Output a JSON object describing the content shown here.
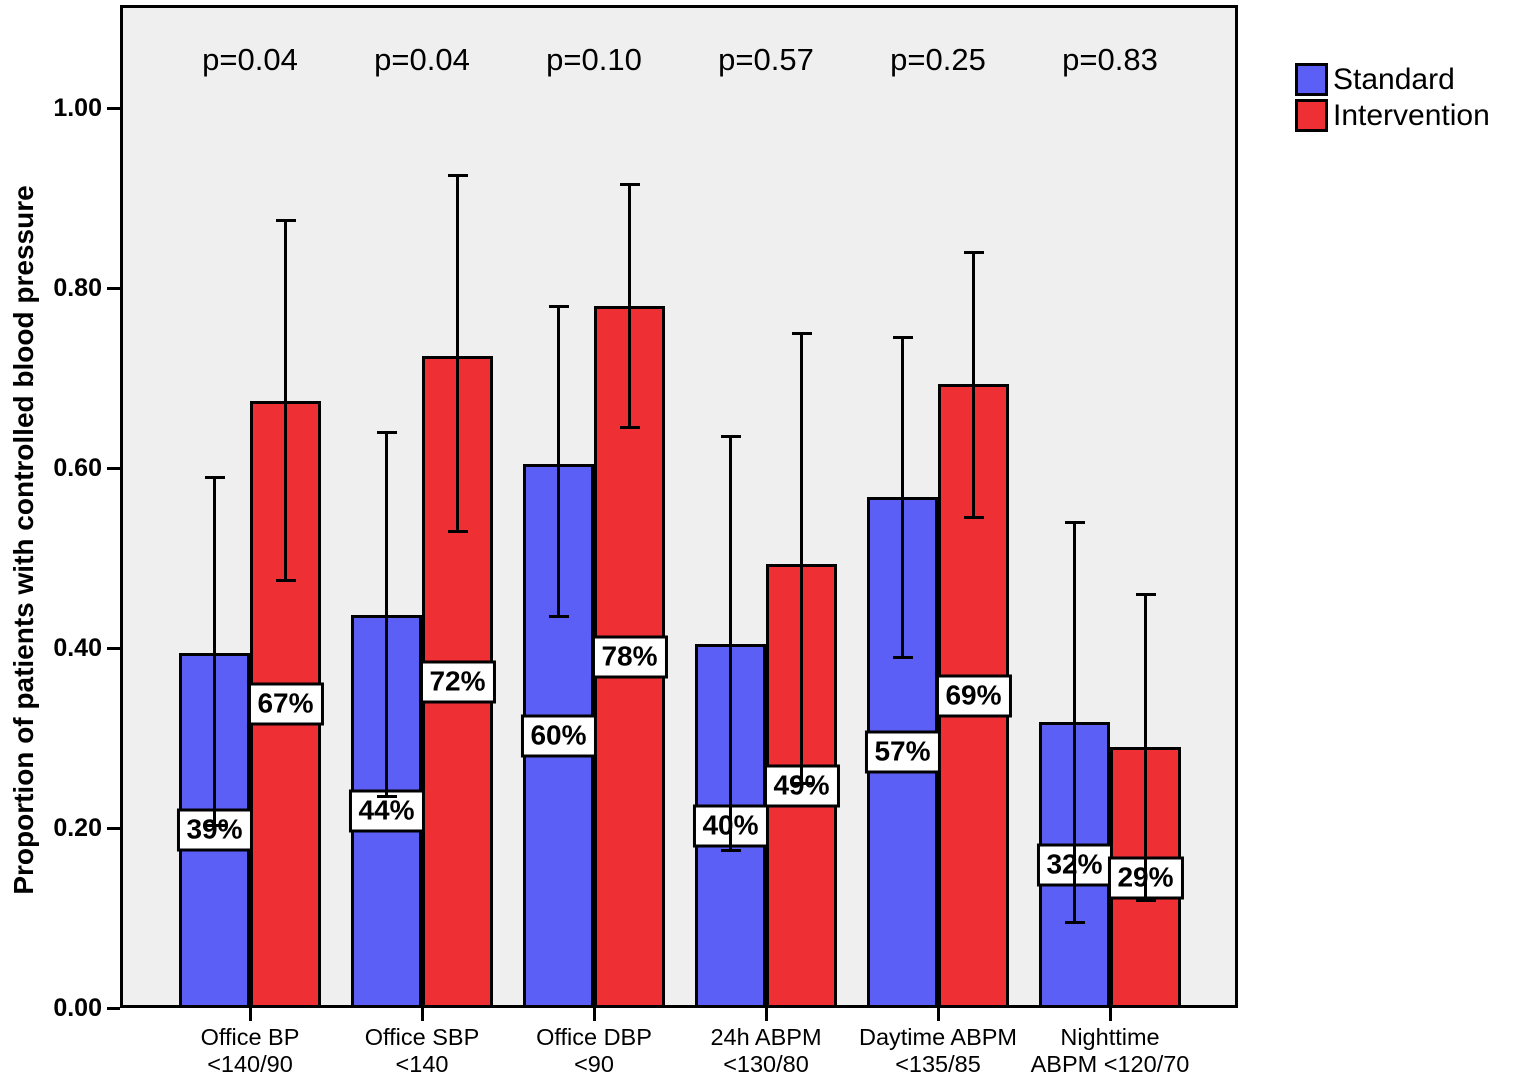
{
  "chart_data": {
    "type": "bar",
    "title": "",
    "ylabel": "Proportion of patients with controlled blood pressure",
    "xlabel": "",
    "grid": false,
    "plot_background": "#EFEFEF",
    "axis_color": "#000000",
    "legend_position": "top-right-outside",
    "error_bars": true,
    "ylim": [
      0.0,
      1.11
    ],
    "yticks": [
      {
        "value": 0.0,
        "label": "0.00"
      },
      {
        "value": 0.2,
        "label": "0.20"
      },
      {
        "value": 0.4,
        "label": "0.40"
      },
      {
        "value": 0.6,
        "label": "0.60"
      },
      {
        "value": 0.8,
        "label": "0.80"
      },
      {
        "value": 1.0,
        "label": "1.00"
      }
    ],
    "categories": [
      {
        "lines": [
          "Office BP",
          "<140/90"
        ],
        "p_value": "p=0.04"
      },
      {
        "lines": [
          "Office SBP",
          "<140"
        ],
        "p_value": "p=0.04"
      },
      {
        "lines": [
          "Office DBP",
          "<90"
        ],
        "p_value": "p=0.10"
      },
      {
        "lines": [
          "24h ABPM",
          "<130/80"
        ],
        "p_value": "p=0.57"
      },
      {
        "lines": [
          "Daytime ABPM",
          "<135/85"
        ],
        "p_value": "p=0.25"
      },
      {
        "lines": [
          "Nighttime",
          "ABPM <120/70"
        ],
        "p_value": "p=0.83"
      }
    ],
    "series": [
      {
        "name": "Standard",
        "color": "#5C5FF5",
        "values": [
          0.395,
          0.437,
          0.605,
          0.405,
          0.568,
          0.318
        ],
        "bar_labels": [
          "39%",
          "44%",
          "60%",
          "40%",
          "57%",
          "32%"
        ],
        "ci_low": [
          0.203,
          0.235,
          0.435,
          0.175,
          0.39,
          0.095
        ],
        "ci_high": [
          0.59,
          0.64,
          0.78,
          0.635,
          0.745,
          0.54
        ]
      },
      {
        "name": "Intervention",
        "color": "#EE3035",
        "values": [
          0.675,
          0.725,
          0.78,
          0.493,
          0.693,
          0.29
        ],
        "bar_labels": [
          "67%",
          "72%",
          "78%",
          "49%",
          "69%",
          "29%"
        ],
        "ci_low": [
          0.475,
          0.53,
          0.645,
          0.25,
          0.545,
          0.12
        ],
        "ci_high": [
          0.875,
          0.925,
          0.915,
          0.75,
          0.84,
          0.46
        ]
      }
    ]
  }
}
